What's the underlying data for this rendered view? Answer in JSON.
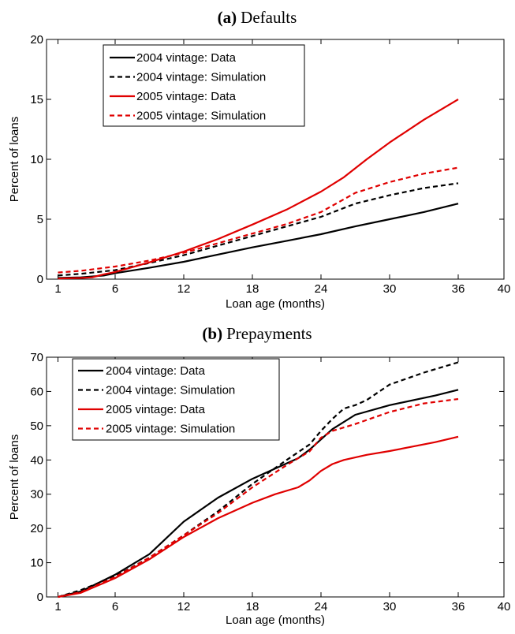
{
  "chart_data": [
    {
      "type": "line",
      "panel_label": "(a)",
      "title": "Defaults",
      "xlabel": "Loan age (months)",
      "ylabel": "Percent of loans",
      "xlim": [
        0,
        40
      ],
      "ylim": [
        0,
        20
      ],
      "xticks": [
        1,
        6,
        12,
        18,
        24,
        30,
        36,
        40
      ],
      "yticks": [
        0,
        5,
        10,
        15,
        20
      ],
      "grid": false,
      "legend_position": "top-left",
      "series": [
        {
          "name": "2004 vintage: Data",
          "color": "#000000",
          "dash": "solid",
          "x": [
            1,
            3,
            5,
            6,
            9,
            12,
            15,
            18,
            21,
            24,
            27,
            30,
            33,
            36
          ],
          "y": [
            0.1,
            0.15,
            0.3,
            0.5,
            0.95,
            1.45,
            2.05,
            2.65,
            3.2,
            3.75,
            4.4,
            5.0,
            5.6,
            6.3
          ]
        },
        {
          "name": "2004 vintage: Simulation",
          "color": "#000000",
          "dash": "dashed",
          "x": [
            1,
            3,
            6,
            9,
            12,
            15,
            18,
            21,
            24,
            27,
            30,
            33,
            36
          ],
          "y": [
            0.3,
            0.45,
            0.75,
            1.35,
            2.0,
            2.8,
            3.6,
            4.4,
            5.2,
            6.3,
            7.0,
            7.6,
            8.0
          ]
        },
        {
          "name": "2005 vintage: Data",
          "color": "#e00000",
          "dash": "solid",
          "x": [
            1,
            3,
            4,
            5,
            6,
            9,
            12,
            15,
            18,
            21,
            24,
            26,
            28,
            30,
            33,
            36
          ],
          "y": [
            0.05,
            0.1,
            0.15,
            0.4,
            0.6,
            1.4,
            2.3,
            3.35,
            4.55,
            5.8,
            7.3,
            8.5,
            10.0,
            11.4,
            13.3,
            15.0
          ]
        },
        {
          "name": "2005 vintage: Simulation",
          "color": "#e00000",
          "dash": "dashed",
          "x": [
            1,
            3,
            6,
            9,
            12,
            15,
            18,
            21,
            24,
            27,
            30,
            33,
            36
          ],
          "y": [
            0.55,
            0.7,
            1.05,
            1.55,
            2.2,
            3.0,
            3.8,
            4.6,
            5.6,
            7.2,
            8.1,
            8.8,
            9.3
          ]
        }
      ]
    },
    {
      "type": "line",
      "panel_label": "(b)",
      "title": "Prepayments",
      "xlabel": "Loan age (months)",
      "ylabel": "Percent of loans",
      "xlim": [
        0,
        40
      ],
      "ylim": [
        0,
        70
      ],
      "xticks": [
        1,
        6,
        12,
        18,
        24,
        30,
        36,
        40
      ],
      "yticks": [
        0,
        10,
        20,
        30,
        40,
        50,
        60,
        70
      ],
      "grid": false,
      "legend_position": "top-left",
      "series": [
        {
          "name": "2004 vintage: Data",
          "color": "#000000",
          "dash": "solid",
          "x": [
            1,
            3,
            6,
            9,
            12,
            15,
            18,
            21,
            22,
            23,
            24,
            25,
            27,
            30,
            34,
            36
          ],
          "y": [
            0,
            1.6,
            6.5,
            12.5,
            22,
            29,
            34.5,
            39,
            40.5,
            43,
            46,
            49,
            53.2,
            56,
            58.8,
            60.5
          ]
        },
        {
          "name": "2004 vintage: Simulation",
          "color": "#000000",
          "dash": "dashed",
          "x": [
            1,
            3,
            6,
            9,
            12,
            15,
            18,
            21,
            23,
            24,
            25,
            26,
            27,
            28,
            30,
            33,
            36
          ],
          "y": [
            0,
            2,
            6,
            11.5,
            18,
            25,
            33,
            40,
            44.5,
            48.5,
            52,
            55,
            56,
            57.5,
            62,
            65.5,
            68.5
          ]
        },
        {
          "name": "2005 vintage: Data",
          "color": "#e00000",
          "dash": "solid",
          "x": [
            1,
            3,
            6,
            9,
            12,
            15,
            18,
            20,
            22,
            23,
            24,
            25,
            26,
            28,
            30,
            34,
            36
          ],
          "y": [
            0,
            1.2,
            5.5,
            11,
            17.5,
            23,
            27.5,
            30,
            32,
            34,
            36.8,
            38.8,
            40,
            41.5,
            42.6,
            45.2,
            46.8
          ]
        },
        {
          "name": "2005 vintage: Simulation",
          "color": "#e00000",
          "dash": "dashed",
          "x": [
            1,
            3,
            6,
            9,
            12,
            15,
            18,
            21,
            23,
            24,
            25,
            27,
            30,
            33,
            36
          ],
          "y": [
            0,
            1.4,
            5.8,
            11.5,
            18,
            24.5,
            32,
            38.5,
            42.5,
            46.5,
            48.5,
            50.5,
            54,
            56.5,
            57.8
          ]
        }
      ]
    }
  ]
}
